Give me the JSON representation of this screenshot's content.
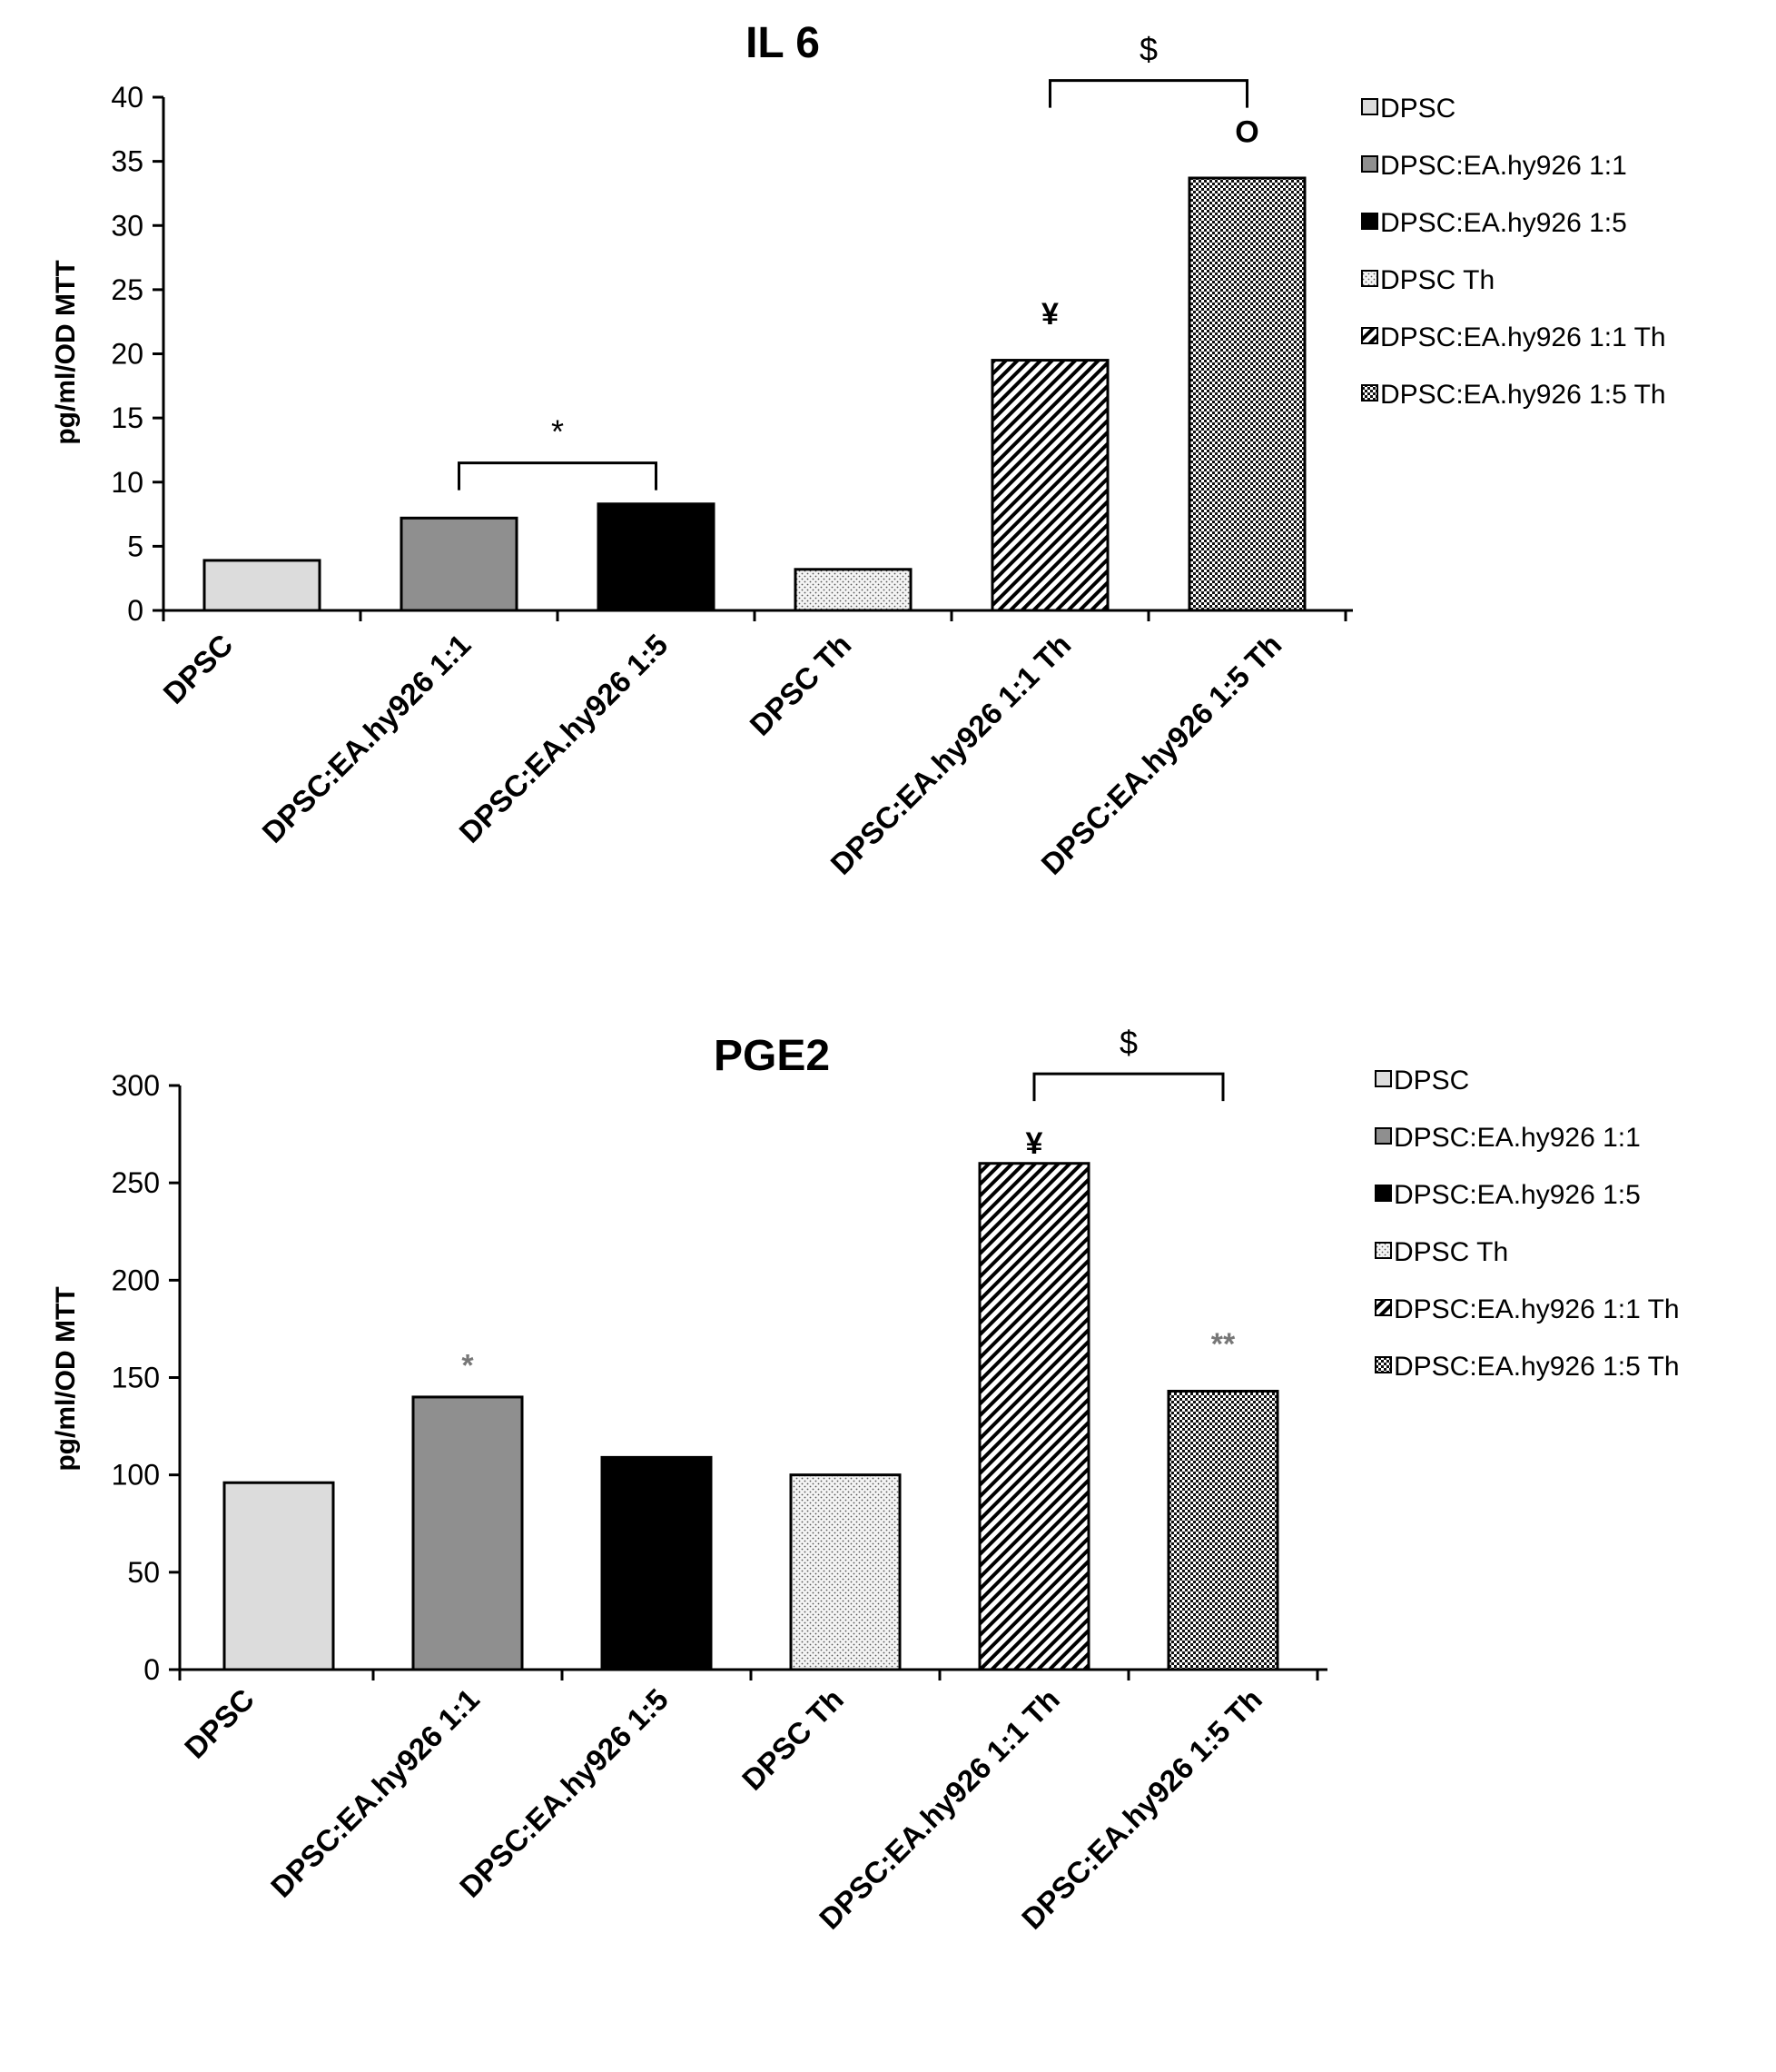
{
  "colors": {
    "axis": "#000000",
    "text": "#000000",
    "dpsc": "#dcdcdc",
    "dpsc_ea_1_1": "#8f8f8f",
    "dpsc_ea_1_5": "#000000"
  },
  "chart_data": [
    {
      "type": "bar",
      "title": "IL 6",
      "ylabel": "pg/ml/OD MTT",
      "xlabel": "",
      "ylim": [
        0,
        40
      ],
      "yticks": [
        "0",
        "5",
        "10",
        "15",
        "20",
        "25",
        "30",
        "35",
        "40"
      ],
      "grid": false,
      "legend_position": "right",
      "categories": [
        "DPSC",
        "DPSC:EA.hy926 1:1",
        "DPSC:EA.hy926 1:5",
        "DPSC Th",
        "DPSC:EA.hy926 1:1 Th",
        "DPSC:EA.hy926 1:5 Th"
      ],
      "values": [
        3.9,
        7.2,
        8.3,
        3.2,
        19.5,
        33.7
      ],
      "fills": [
        "solid-light",
        "solid-gray",
        "solid-black",
        "dots",
        "diagonal",
        "checker"
      ],
      "legend": [
        "DPSC",
        "DPSC:EA.hy926 1:1",
        "DPSC:EA.hy926 1:5",
        "DPSC Th",
        "DPSC:EA.hy926 1:1 Th",
        "DPSC:EA.hy926 1:5 Th"
      ],
      "annotations": [
        {
          "text": "*",
          "type": "bracket",
          "from": 1,
          "to": 2,
          "level": 11.5
        },
        {
          "text": "¥",
          "type": "above",
          "bar": 4,
          "level": 22.3
        },
        {
          "text": "O",
          "type": "above",
          "bar": 5,
          "level": 36.5
        },
        {
          "text": "$",
          "type": "bracket",
          "from": 4,
          "to": 5,
          "level": 41.3
        }
      ]
    },
    {
      "type": "bar",
      "title": "PGE2",
      "ylabel": "pg/ml/OD MTT",
      "xlabel": "",
      "ylim": [
        0,
        300
      ],
      "yticks": [
        "0",
        "50",
        "100",
        "150",
        "200",
        "250",
        "300"
      ],
      "grid": false,
      "legend_position": "right",
      "categories": [
        "DPSC",
        "DPSC:EA.hy926 1:1",
        "DPSC:EA.hy926 1:5",
        "DPSC Th",
        "DPSC:EA.hy926 1:1 Th",
        "DPSC:EA.hy926 1:5 Th"
      ],
      "values": [
        96,
        140,
        109,
        100,
        260,
        143
      ],
      "fills": [
        "solid-light",
        "solid-gray",
        "solid-black",
        "dots",
        "diagonal",
        "checker"
      ],
      "legend": [
        "DPSC",
        "DPSC:EA.hy926 1:1",
        "DPSC:EA.hy926 1:5",
        "DPSC Th",
        "DPSC:EA.hy926 1:1 Th",
        "DPSC:EA.hy926 1:5 Th"
      ],
      "annotations": [
        {
          "text": "*",
          "type": "above",
          "bar": 1,
          "level": 151
        },
        {
          "text": "¥",
          "type": "above",
          "bar": 4,
          "level": 265
        },
        {
          "text": "**",
          "type": "above",
          "bar": 5,
          "level": 162
        },
        {
          "text": "$",
          "type": "bracket",
          "from": 4,
          "to": 5,
          "level": 306
        }
      ]
    }
  ]
}
